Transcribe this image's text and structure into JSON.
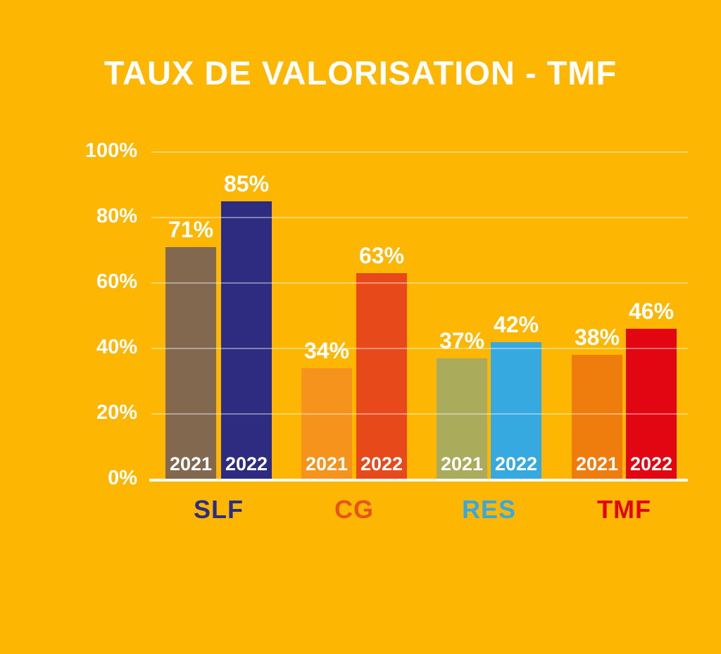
{
  "title": "TAUX DE VALORISATION - TMF",
  "colors": {
    "background": "#FDB702",
    "title_text": "#FFFFFF",
    "grid": "#FFFFFF",
    "axis_tick_text": "#FFFFFF",
    "value_label_text": "#FFFFFF",
    "year_label_text": "#FFFFFF"
  },
  "y_axis": {
    "tick_labels": [
      "100%",
      "80%",
      "60%",
      "40%",
      "20%",
      "0%"
    ],
    "tick_values": [
      100,
      80,
      60,
      40,
      20,
      0
    ]
  },
  "chart_data": {
    "type": "bar",
    "title": "TAUX DE VALORISATION - TMF",
    "categories": [
      "SLF",
      "CG",
      "RES",
      "TMF"
    ],
    "series": [
      {
        "name": "2021",
        "values": [
          71,
          34,
          37,
          38
        ]
      },
      {
        "name": "2022",
        "values": [
          85,
          63,
          42,
          46
        ]
      }
    ],
    "xlabel": "",
    "ylabel": "",
    "ylim": [
      0,
      100
    ],
    "yticks": [
      0,
      20,
      40,
      60,
      80,
      100
    ],
    "grid": "on",
    "legend_position": "year labels rendered inside bar bases",
    "groups": [
      {
        "label": "SLF",
        "label_color": "#2E2C80",
        "bars": [
          {
            "year": "2021",
            "value": 71,
            "display": "71%",
            "color": "#82684F"
          },
          {
            "year": "2022",
            "value": 85,
            "display": "85%",
            "color": "#2E2C80"
          }
        ]
      },
      {
        "label": "CG",
        "label_color": "#E8551B",
        "bars": [
          {
            "year": "2021",
            "value": 34,
            "display": "34%",
            "color": "#F6931C"
          },
          {
            "year": "2022",
            "value": 63,
            "display": "63%",
            "color": "#E8491B"
          }
        ]
      },
      {
        "label": "RES",
        "label_color": "#36A9E0",
        "bars": [
          {
            "year": "2021",
            "value": 37,
            "display": "37%",
            "color": "#AAAC5C"
          },
          {
            "year": "2022",
            "value": 42,
            "display": "42%",
            "color": "#36A9E0"
          }
        ]
      },
      {
        "label": "TMF",
        "label_color": "#E20613",
        "bars": [
          {
            "year": "2021",
            "value": 38,
            "display": "38%",
            "color": "#EF7D0E"
          },
          {
            "year": "2022",
            "value": 46,
            "display": "46%",
            "color": "#E20613"
          }
        ]
      }
    ]
  }
}
